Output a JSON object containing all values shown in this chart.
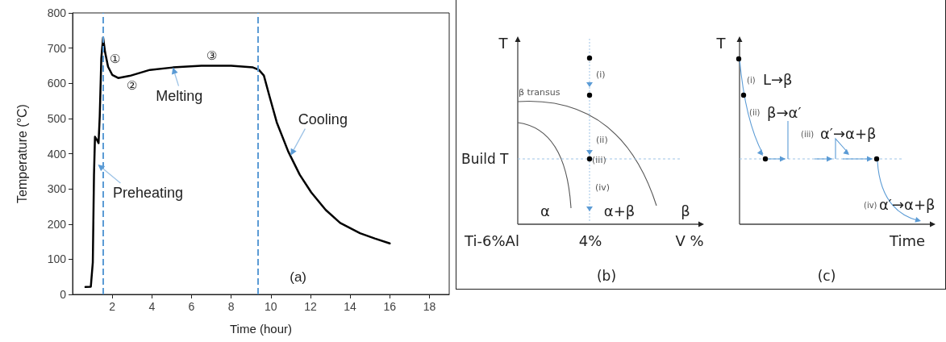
{
  "chart_data": [
    {
      "type": "line",
      "xlabel": "Time (hour)",
      "ylabel": "Temperature (°C)",
      "xlim": [
        0,
        19
      ],
      "xticks": [
        2,
        4,
        6,
        8,
        10,
        12,
        14,
        16,
        18
      ],
      "ylim": [
        0,
        800
      ],
      "yticks": [
        0,
        100,
        200,
        300,
        400,
        500,
        600,
        700,
        800
      ],
      "grid": false,
      "marker": "none",
      "line_style": "solid",
      "series": [
        {
          "color": "#000000",
          "x": [
            0.65,
            0.92,
            1.02,
            1.08,
            1.13,
            1.22,
            1.31,
            1.37,
            1.45,
            1.54,
            1.64,
            1.79,
            2.0,
            2.3,
            2.88,
            3.9,
            5.06,
            6.5,
            8.0,
            9.1,
            9.4,
            9.65,
            9.93,
            10.3,
            10.88,
            11.46,
            12.04,
            12.77,
            13.5,
            14.5,
            15.24,
            16.0
          ],
          "values": [
            21,
            22,
            91,
            340,
            448,
            440,
            430,
            506,
            672,
            730,
            688,
            647,
            624,
            615,
            621,
            638,
            645,
            650,
            650,
            645,
            638,
            622,
            564,
            489,
            406,
            340,
            290,
            240,
            203,
            174,
            159,
            145
          ]
        }
      ],
      "ref_lines": [
        {
          "axis": "x",
          "value": 1.55,
          "color": "#5b9bd5",
          "line_style": "dashed"
        },
        {
          "axis": "x",
          "value": 9.35,
          "color": "#5b9bd5",
          "line_style": "dashed"
        }
      ],
      "annotations": [
        "①",
        "②",
        "③",
        {
          "text": "Melting",
          "x": 5.06,
          "y": 645
        },
        {
          "text": "Cooling",
          "x": 11.0,
          "y": 395
        },
        {
          "text": "Preheating",
          "x": 1.28,
          "y": 369
        },
        "(a)"
      ]
    },
    {
      "type": "other",
      "ylabel": "T",
      "xlabel": "V %",
      "annotations": [
        "Build T",
        "β transus",
        "(i)",
        "(ii)",
        "(iii)",
        "(iv)",
        "α",
        "α+β",
        "β",
        "Ti-6%Al",
        "4%",
        "(b)"
      ]
    },
    {
      "type": "other",
      "ylabel": "T",
      "xlabel": "Time",
      "annotations": [
        "(i)",
        "L→β",
        "(ii)",
        "β→α′",
        "(iii)",
        "α′→α+β",
        "(iv)",
        "α′→α+β",
        "(c)"
      ]
    }
  ]
}
